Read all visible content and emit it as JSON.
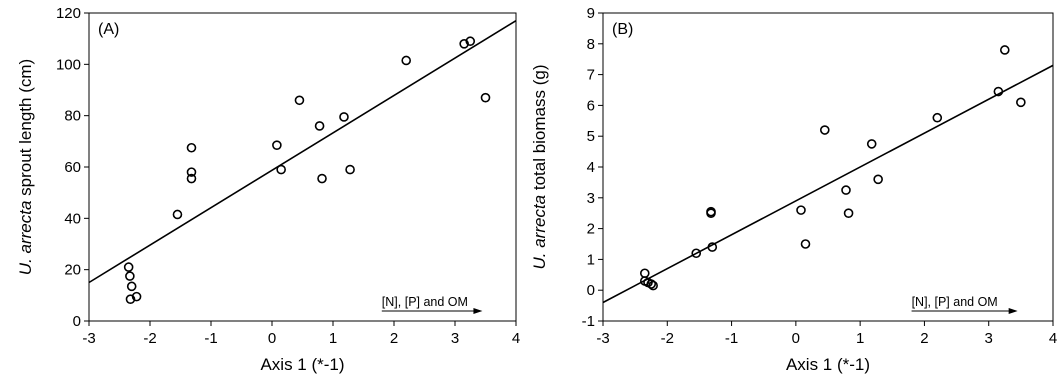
{
  "chart_data": [
    {
      "type": "scatter",
      "panel_label": "(A)",
      "xlabel": "Axis 1 (*-1)",
      "ylabel_italic": "U. arrecta",
      "ylabel_rest": " sprout length (cm)",
      "xlim": [
        -3,
        4
      ],
      "ylim": [
        0,
        120
      ],
      "xticks": [
        -3,
        -2,
        -1,
        0,
        1,
        2,
        3,
        4
      ],
      "yticks": [
        0,
        20,
        40,
        60,
        80,
        100,
        120
      ],
      "arrow_label": "[N], [P] and OM",
      "arrow_from_x": 1.8,
      "arrow_to_x": 3.45,
      "fit_line": {
        "x0": -3,
        "y0": 15,
        "x1": 4,
        "y1": 117
      },
      "points": [
        {
          "x": -2.35,
          "y": 21
        },
        {
          "x": -2.33,
          "y": 17.5
        },
        {
          "x": -2.3,
          "y": 13.5
        },
        {
          "x": -2.32,
          "y": 8.5
        },
        {
          "x": -2.22,
          "y": 9.5
        },
        {
          "x": -1.55,
          "y": 41.5
        },
        {
          "x": -1.32,
          "y": 67.5
        },
        {
          "x": -1.32,
          "y": 58
        },
        {
          "x": -1.32,
          "y": 55.5
        },
        {
          "x": 0.08,
          "y": 68.5
        },
        {
          "x": 0.15,
          "y": 59
        },
        {
          "x": 0.45,
          "y": 86
        },
        {
          "x": 0.78,
          "y": 76
        },
        {
          "x": 0.82,
          "y": 55.5
        },
        {
          "x": 1.18,
          "y": 79.5
        },
        {
          "x": 1.28,
          "y": 59
        },
        {
          "x": 2.2,
          "y": 101.5
        },
        {
          "x": 3.15,
          "y": 108
        },
        {
          "x": 3.25,
          "y": 109
        },
        {
          "x": 3.5,
          "y": 87
        }
      ]
    },
    {
      "type": "scatter",
      "panel_label": "(B)",
      "xlabel": "Axis 1 (*-1)",
      "ylabel_italic": "U. arrecta",
      "ylabel_rest": " total biomass (g)",
      "xlim": [
        -3,
        4
      ],
      "ylim": [
        -1,
        9
      ],
      "xticks": [
        -3,
        -2,
        -1,
        0,
        1,
        2,
        3,
        4
      ],
      "yticks": [
        -1,
        0,
        1,
        2,
        3,
        4,
        5,
        6,
        7,
        8,
        9
      ],
      "arrow_label": "[N], [P] and OM",
      "arrow_from_x": 1.8,
      "arrow_to_x": 3.45,
      "fit_line": {
        "x0": -3,
        "y0": -0.4,
        "x1": 4,
        "y1": 7.3
      },
      "points": [
        {
          "x": -2.35,
          "y": 0.55
        },
        {
          "x": -2.35,
          "y": 0.3
        },
        {
          "x": -2.3,
          "y": 0.25
        },
        {
          "x": -2.25,
          "y": 0.2
        },
        {
          "x": -2.22,
          "y": 0.15
        },
        {
          "x": -1.55,
          "y": 1.2
        },
        {
          "x": -1.32,
          "y": 2.55
        },
        {
          "x": -1.32,
          "y": 2.5
        },
        {
          "x": -1.3,
          "y": 1.4
        },
        {
          "x": 0.08,
          "y": 2.6
        },
        {
          "x": 0.15,
          "y": 1.5
        },
        {
          "x": 0.45,
          "y": 5.2
        },
        {
          "x": 0.78,
          "y": 3.25
        },
        {
          "x": 0.82,
          "y": 2.5
        },
        {
          "x": 1.18,
          "y": 4.75
        },
        {
          "x": 1.28,
          "y": 3.6
        },
        {
          "x": 2.2,
          "y": 5.6
        },
        {
          "x": 3.15,
          "y": 6.45
        },
        {
          "x": 3.25,
          "y": 7.8
        },
        {
          "x": 3.5,
          "y": 6.1
        }
      ]
    }
  ]
}
